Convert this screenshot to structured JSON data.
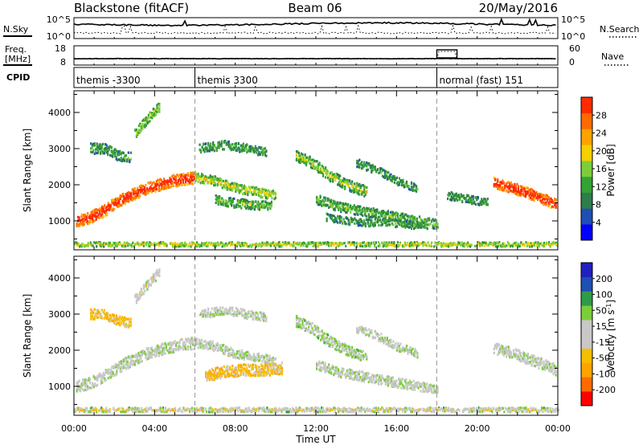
{
  "header": {
    "station": "Blackstone (fitACF)",
    "beam": "Beam 06",
    "date": "20/May/2016"
  },
  "sky_panel": {
    "left_label": "N.Sky",
    "left_ticks": [
      "10^5",
      "10^0"
    ],
    "right_label": "N.Search",
    "right_ticks": [
      "10^5",
      "10^0"
    ]
  },
  "freq_panel": {
    "left_label_1": "Freq.",
    "left_label_2": "[MHz]",
    "left_ticks": [
      "18",
      "8"
    ],
    "right_label": "Nave",
    "right_ticks": [
      "60",
      "0"
    ]
  },
  "cpid_panel": {
    "label": "CPID",
    "segments": [
      {
        "text": "themis -3300",
        "start_hour": 0
      },
      {
        "text": "themis 3300",
        "start_hour": 6
      },
      {
        "text": "normal (fast) 151",
        "start_hour": 18
      }
    ]
  },
  "x_axis": {
    "title": "Time UT",
    "ticks": [
      "00:00",
      "04:00",
      "08:00",
      "12:00",
      "16:00",
      "20:00",
      "00:00"
    ],
    "range_hours": [
      0,
      24
    ]
  },
  "colors": {
    "power": [
      "#0000ff",
      "#1f4fb3",
      "#2f7d4a",
      "#35a235",
      "#7ccd3a",
      "#f5d000",
      "#ffa300",
      "#ff6a00",
      "#ff2a00"
    ],
    "velocity": [
      "#ff0000",
      "#ff6a00",
      "#ffa300",
      "#f5be00",
      "#c8c8c8",
      "#c8c8c8",
      "#7ccd3a",
      "#2f9b4a",
      "#1f4fb3",
      "#2020c0"
    ]
  },
  "chart_data": [
    {
      "type": "heatmap",
      "panel": "power",
      "ylabel": "Slant Range [km]",
      "yticks": [
        "1000",
        "2000",
        "3000",
        "4000"
      ],
      "ylim": [
        200,
        4600
      ],
      "colorbar_label": "Power [dB]",
      "colorbar_ticks": [
        "4",
        "8",
        "12",
        "16",
        "20",
        "24",
        "28"
      ],
      "bands": [
        {
          "x": [
            0.1,
            0.6,
            1.2,
            1.8,
            2.4,
            3.0,
            3.6,
            4.2,
            4.8,
            5.4,
            6.0
          ],
          "y": [
            1000,
            1050,
            1200,
            1400,
            1600,
            1750,
            1900,
            2000,
            2100,
            2150,
            2200
          ],
          "width": 320,
          "level": 6,
          "core": 9
        },
        {
          "x": [
            6.0,
            7.0,
            8.0,
            9.0,
            10.0
          ],
          "y": [
            2200,
            2100,
            1900,
            1800,
            1700
          ],
          "width": 250,
          "level": 3,
          "core": 5
        },
        {
          "x": [
            0.8,
            1.5,
            2.2,
            2.8
          ],
          "y": [
            3000,
            3000,
            2800,
            2750
          ],
          "width": 280,
          "level": 2,
          "core": 3
        },
        {
          "x": [
            3.0,
            3.6,
            4.2
          ],
          "y": [
            3400,
            3800,
            4150
          ],
          "width": 260,
          "level": 3,
          "core": 4
        },
        {
          "x": [
            6.2,
            7.5,
            8.5,
            9.5
          ],
          "y": [
            3000,
            3100,
            3000,
            2900
          ],
          "width": 240,
          "level": 2,
          "core": 3
        },
        {
          "x": [
            7.0,
            7.8,
            8.8,
            9.8
          ],
          "y": [
            1600,
            1500,
            1450,
            1400
          ],
          "width": 260,
          "level": 2,
          "core": 4
        },
        {
          "x": [
            11.0,
            11.8,
            12.5,
            13.5,
            14.5
          ],
          "y": [
            2800,
            2600,
            2300,
            2000,
            1800
          ],
          "width": 300,
          "level": 2,
          "core": 5
        },
        {
          "x": [
            12.0,
            13.0,
            14.0,
            15.0,
            16.0,
            17.0,
            18.0
          ],
          "y": [
            1600,
            1400,
            1300,
            1200,
            1100,
            1000,
            900
          ],
          "width": 260,
          "level": 2,
          "core": 4
        },
        {
          "x": [
            12.5,
            13.5,
            14.5,
            15.5,
            16.5,
            17.5
          ],
          "y": [
            1100,
            1000,
            950,
            950,
            900,
            850
          ],
          "width": 200,
          "level": 2,
          "core": 3
        },
        {
          "x": [
            14.0,
            15.0,
            16.0,
            17.0
          ],
          "y": [
            2600,
            2400,
            2100,
            1900
          ],
          "width": 220,
          "level": 2,
          "core": 3
        },
        {
          "x": [
            18.5,
            19.5,
            20.5
          ],
          "y": [
            1700,
            1600,
            1500
          ],
          "width": 220,
          "level": 2,
          "core": 3
        },
        {
          "x": [
            20.8,
            21.8,
            22.8,
            23.9
          ],
          "y": [
            2050,
            1900,
            1700,
            1450
          ],
          "width": 300,
          "level": 6,
          "core": 9
        },
        {
          "x": [
            0.0,
            6.0,
            12.0,
            18.0,
            24.0
          ],
          "y": [
            350,
            350,
            350,
            350,
            350
          ],
          "width": 120,
          "level": 3,
          "core": 5
        }
      ]
    },
    {
      "type": "heatmap",
      "panel": "velocity",
      "ylabel": "Slant Range [km]",
      "yticks": [
        "1000",
        "2000",
        "3000",
        "4000"
      ],
      "ylim": [
        200,
        4600
      ],
      "colorbar_label": "Velocity [m s^-1]",
      "colorbar_ticks": [
        "-200",
        "-100",
        "-50",
        "-15",
        "15",
        "50",
        "100",
        "200"
      ],
      "bands": [
        {
          "x": [
            0.1,
            0.6,
            1.2,
            1.8,
            2.4,
            3.0,
            3.6,
            4.2,
            4.8,
            5.4,
            6.0
          ],
          "y": [
            1000,
            1050,
            1200,
            1400,
            1600,
            1750,
            1900,
            2000,
            2100,
            2150,
            2200
          ],
          "width": 320,
          "level": 5,
          "core": 5
        },
        {
          "x": [
            6.0,
            7.0,
            8.0,
            9.0,
            10.0
          ],
          "y": [
            2200,
            2100,
            1900,
            1800,
            1700
          ],
          "width": 250,
          "level": 5,
          "core": 5
        },
        {
          "x": [
            6.5,
            7.5,
            8.5,
            9.5,
            10.3
          ],
          "y": [
            1300,
            1400,
            1450,
            1450,
            1500
          ],
          "width": 320,
          "level": 3,
          "core": 3
        },
        {
          "x": [
            0.8,
            1.5,
            2.2,
            2.8
          ],
          "y": [
            3000,
            3000,
            2800,
            2750
          ],
          "width": 280,
          "level": 3,
          "core": 3
        },
        {
          "x": [
            3.0,
            3.6,
            4.2
          ],
          "y": [
            3400,
            3800,
            4150
          ],
          "width": 260,
          "level": 5,
          "core": 4
        },
        {
          "x": [
            6.2,
            7.5,
            8.5,
            9.5
          ],
          "y": [
            3000,
            3100,
            3000,
            2900
          ],
          "width": 240,
          "level": 5,
          "core": 5
        },
        {
          "x": [
            11.0,
            11.8,
            12.5,
            13.5,
            14.5
          ],
          "y": [
            2800,
            2600,
            2300,
            2000,
            1800
          ],
          "width": 300,
          "level": 6,
          "core": 5
        },
        {
          "x": [
            12.0,
            13.0,
            14.0,
            15.0,
            16.0,
            17.0,
            18.0
          ],
          "y": [
            1600,
            1400,
            1300,
            1200,
            1100,
            1000,
            900
          ],
          "width": 260,
          "level": 5,
          "core": 5
        },
        {
          "x": [
            14.0,
            15.0,
            16.0,
            17.0
          ],
          "y": [
            2600,
            2400,
            2100,
            1900
          ],
          "width": 220,
          "level": 5,
          "core": 5
        },
        {
          "x": [
            20.8,
            21.8,
            22.8,
            23.9
          ],
          "y": [
            2050,
            1900,
            1700,
            1450
          ],
          "width": 300,
          "level": 5,
          "core": 5
        },
        {
          "x": [
            0.0,
            6.0,
            12.0,
            18.0,
            24.0
          ],
          "y": [
            350,
            350,
            350,
            350,
            350
          ],
          "width": 120,
          "level": 6,
          "core": 3
        }
      ]
    }
  ]
}
